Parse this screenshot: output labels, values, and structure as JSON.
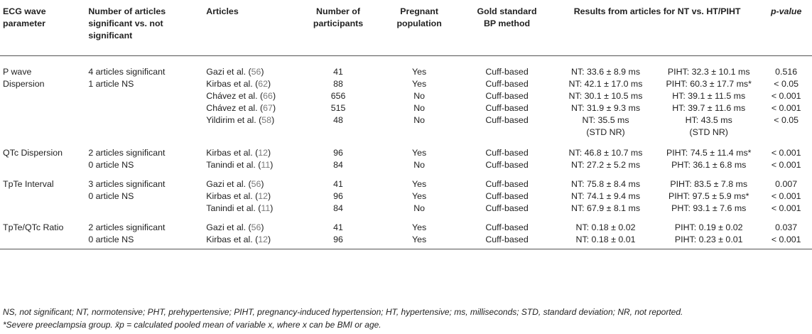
{
  "headers": {
    "param": [
      "ECG wave",
      "parameter"
    ],
    "count": [
      "Number of articles",
      "significant vs. not",
      "significant"
    ],
    "articles": "Articles",
    "participants": [
      "Number of",
      "participants"
    ],
    "pregnant": [
      "Pregnant",
      "population"
    ],
    "gold": [
      "Gold standard",
      "BP method"
    ],
    "results": "Results from articles for NT vs. HT/PIHT",
    "pvalue": "p-value"
  },
  "groups": [
    {
      "param": [
        "P wave",
        "Dispersion"
      ],
      "counts": [
        "4 articles significant",
        "1 article NS"
      ],
      "rows": [
        {
          "author": "Gazi et al. (",
          "ref": "56",
          "n": "41",
          "preg": "Yes",
          "bp": "Cuff-based",
          "nt": "NT: 33.6 ± 8.9 ms",
          "ht": "PIHT: 32.3 ± 10.1 ms",
          "p": "0.516"
        },
        {
          "author": "Kirbas et al. (",
          "ref": "62",
          "n": "88",
          "preg": "Yes",
          "bp": "Cuff-based",
          "nt": "NT: 42.1 ± 17.0 ms",
          "ht": "PIHT: 60.3 ± 17.7 ms*",
          "p": "< 0.05"
        },
        {
          "author": "Chávez et al. (",
          "ref": "66",
          "n": "656",
          "preg": "No",
          "bp": "Cuff-based",
          "nt": "NT: 30.1 ± 10.5 ms",
          "ht": "HT: 39.1 ± 11.5 ms",
          "p": "< 0.001"
        },
        {
          "author": "Chávez et al. (",
          "ref": "67",
          "n": "515",
          "preg": "No",
          "bp": "Cuff-based",
          "nt": "NT: 31.9 ± 9.3 ms",
          "ht": "HT: 39.7 ± 11.6 ms",
          "p": "< 0.001"
        },
        {
          "author": "Yildirim et al. (",
          "ref": "58",
          "n": "48",
          "preg": "No",
          "bp": "Cuff-based",
          "nt": "NT: 35.5 ms",
          "nt2": "(STD NR)",
          "ht": "HT: 43.5 ms",
          "ht2": "(STD NR)",
          "p": "< 0.05"
        }
      ]
    },
    {
      "param": [
        "QTc Dispersion"
      ],
      "counts": [
        "2 articles significant",
        "0 article NS"
      ],
      "rows": [
        {
          "author": "Kirbas et al. (",
          "ref": "12",
          "n": "96",
          "preg": "Yes",
          "bp": "Cuff-based",
          "nt": "NT: 46.8 ± 10.7 ms",
          "ht": "PIHT: 74.5 ± 11.4 ms*",
          "p": "< 0.001"
        },
        {
          "author": "Tanindi et al. (",
          "ref": "11",
          "n": "84",
          "preg": "No",
          "bp": "Cuff-based",
          "nt": "NT: 27.2 ± 5.2 ms",
          "ht": "PHT: 36.1 ± 6.8 ms",
          "p": "< 0.001"
        }
      ]
    },
    {
      "param": [
        "TpTe Interval"
      ],
      "counts": [
        "3 articles significant",
        "0 article NS"
      ],
      "rows": [
        {
          "author": "Gazi et al. (",
          "ref": "56",
          "n": "41",
          "preg": "Yes",
          "bp": "Cuff-based",
          "nt": "NT: 75.8 ± 8.4 ms",
          "ht": "PIHT: 83.5 ± 7.8 ms",
          "p": "0.007"
        },
        {
          "author": "Kirbas et al. (",
          "ref": "12",
          "n": "96",
          "preg": "Yes",
          "bp": "Cuff-based",
          "nt": "NT: 74.1 ± 9.4 ms",
          "ht": "PIHT: 97.5 ± 5.9 ms*",
          "p": "< 0.001"
        },
        {
          "author": "Tanindi et al. (",
          "ref": "11",
          "n": "84",
          "preg": "No",
          "bp": "Cuff-based",
          "nt": "NT: 67.9 ± 8.1 ms",
          "ht": "PHT: 93.1 ± 7.6 ms",
          "p": "< 0.001"
        }
      ]
    },
    {
      "param": [
        "TpTe/QTc Ratio"
      ],
      "counts": [
        "2 articles significant",
        "0 article NS"
      ],
      "rows": [
        {
          "author": "Gazi et al. (",
          "ref": "56",
          "n": "41",
          "preg": "Yes",
          "bp": "Cuff-based",
          "nt": "NT: 0.18 ± 0.02",
          "ht": "PIHT: 0.19 ± 0.02",
          "p": "0.037"
        },
        {
          "author": "Kirbas et al. (",
          "ref": "12",
          "n": "96",
          "preg": "Yes",
          "bp": "Cuff-based",
          "nt": "NT: 0.18 ± 0.01",
          "ht": "PIHT: 0.23 ± 0.01",
          "p": "< 0.001"
        }
      ]
    }
  ],
  "close_paren": ")",
  "footnotes": [
    "NS, not significant; NT, normotensive; PHT, prehypertensive; PIHT, pregnancy-induced hypertension; HT, hypertensive; ms, milliseconds; STD, standard deviation; NR, not reported.",
    "*Severe preeclampsia group. x̄p = calculated pooled mean of variable x, where x can be BMI or age."
  ]
}
